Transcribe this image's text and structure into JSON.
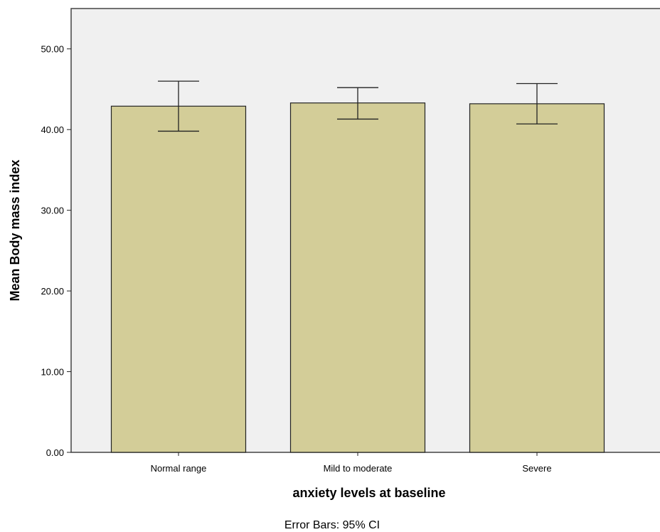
{
  "chart_data": {
    "type": "bar",
    "categories": [
      "Normal range",
      "Mild to moderate",
      "Severe"
    ],
    "values": [
      42.9,
      43.3,
      43.2
    ],
    "error_bars": {
      "type": "95% CI",
      "lower": [
        39.8,
        41.3,
        40.7
      ],
      "upper": [
        46.0,
        45.2,
        45.7
      ]
    },
    "xlabel": "anxiety levels at baseline",
    "ylabel": "Mean Body mass index",
    "ylim": [
      0,
      55
    ],
    "yticks": [
      0,
      10,
      20,
      30,
      40,
      50
    ],
    "ytick_labels": [
      "0.00",
      "10.00",
      "20.00",
      "30.00",
      "40.00",
      "50.00"
    ],
    "grid": false,
    "footnote": "Error Bars: 95% CI"
  },
  "colors": {
    "bar_fill": "#d3cd98",
    "plot_background": "#f0f0f0",
    "frame": "#444444"
  }
}
